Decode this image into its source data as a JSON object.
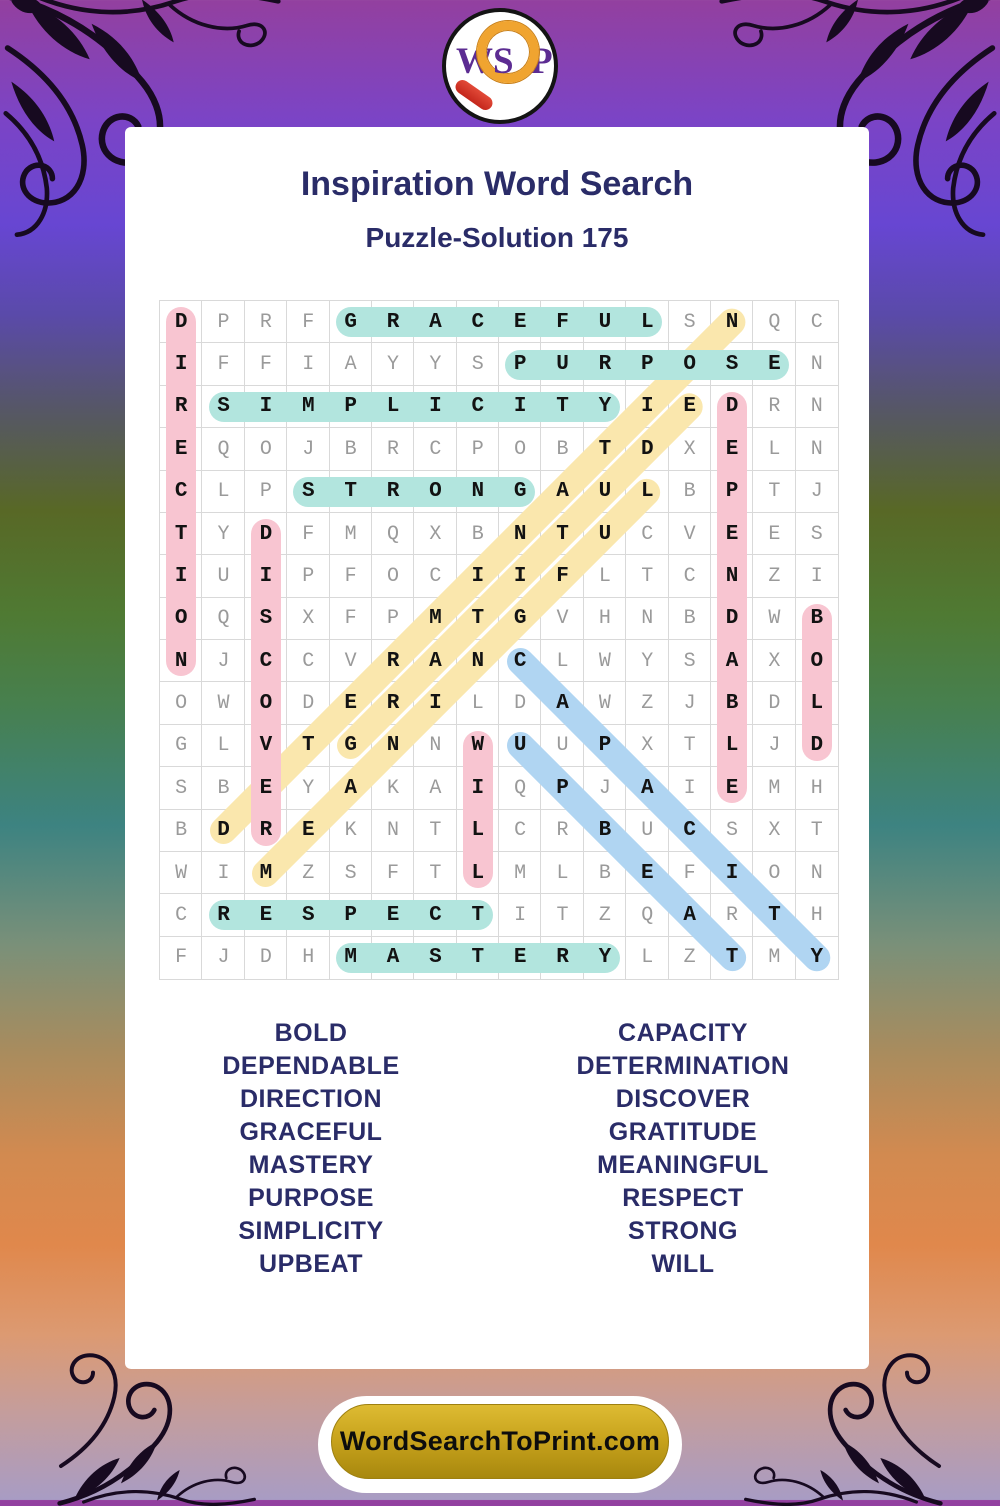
{
  "logo": {
    "letters": [
      "W",
      "S",
      "P"
    ]
  },
  "header": {
    "title": "Inspiration Word Search",
    "subtitle": "Puzzle-Solution 175"
  },
  "grid": {
    "size": 16,
    "rows": [
      "DPRFGRACEFULSNQC",
      "IFFIAYYSPURPOSEN",
      "RSIMPLICITYIEDRN",
      "EQOJBRCPOBTDXELN",
      "CLPSTRONGAULBPTJ",
      "TYDFMQXBNTUCVEES",
      "IUIPFOCIIFLTCNZI",
      "OQSXFPMTGVHNBDWB",
      "NJCCVRANCLWYSAXO",
      "OWODERILDAWZJBDL",
      "GLVTGNNWUUPXTLJD",
      "SBEYAKAIQPJAIEMH",
      "BDREKNTLCRBUCSXT",
      "WIMZSFTLMLBEFION",
      "CRESPECTITZQARTH",
      "FJDHMASTERYLZTMY"
    ]
  },
  "solutions": [
    {
      "word": "GRACEFUL",
      "row": 1,
      "col": 5,
      "dir": "h",
      "color": "teal"
    },
    {
      "word": "PURPOSE",
      "row": 2,
      "col": 9,
      "dir": "h",
      "color": "teal"
    },
    {
      "word": "SIMPLICITY",
      "row": 3,
      "col": 2,
      "dir": "h",
      "color": "teal"
    },
    {
      "word": "STRONG",
      "row": 5,
      "col": 4,
      "dir": "h",
      "color": "teal"
    },
    {
      "word": "RESPECT",
      "row": 15,
      "col": 2,
      "dir": "h",
      "color": "teal"
    },
    {
      "word": "MASTERY",
      "row": 16,
      "col": 5,
      "dir": "h",
      "color": "teal"
    },
    {
      "word": "DIRECTION",
      "row": 1,
      "col": 1,
      "dir": "v",
      "color": "pink"
    },
    {
      "word": "DISCOVER",
      "row": 6,
      "col": 3,
      "dir": "v",
      "color": "pink"
    },
    {
      "word": "DEPENDABLE",
      "row": 3,
      "col": 14,
      "dir": "v",
      "color": "pink"
    },
    {
      "word": "BOLD",
      "row": 8,
      "col": 16,
      "dir": "v",
      "color": "pink"
    },
    {
      "word": "WILL",
      "row": 11,
      "col": 8,
      "dir": "v",
      "color": "pink"
    },
    {
      "word": "DETERMINATION",
      "row": 13,
      "col": 2,
      "dir": "du",
      "color": "yellow"
    },
    {
      "word": "GRATITUDE",
      "row": 11,
      "col": 5,
      "dir": "du",
      "color": "yellow"
    },
    {
      "word": "MEANINGFUL",
      "row": 14,
      "col": 3,
      "dir": "du",
      "color": "yellow"
    },
    {
      "word": "CAPACITY",
      "row": 9,
      "col": 9,
      "dir": "dd",
      "color": "blue"
    },
    {
      "word": "UPBEAT",
      "row": 11,
      "col": 9,
      "dir": "dd",
      "color": "blue"
    }
  ],
  "word_list": {
    "left": [
      "BOLD",
      "DEPENDABLE",
      "DIRECTION",
      "GRACEFUL",
      "MASTERY",
      "PURPOSE",
      "SIMPLICITY",
      "UPBEAT"
    ],
    "right": [
      "CAPACITY",
      "DETERMINATION",
      "DISCOVER",
      "GRATITUDE",
      "MEANINGFUL",
      "RESPECT",
      "STRONG",
      "WILL"
    ]
  },
  "footer": {
    "button_label": "WordSearchToPrint.com"
  },
  "colors": {
    "highlight_teal": "#b2e5de",
    "highlight_pink": "#f8c5d1",
    "highlight_yellow": "#fae7ad",
    "highlight_blue": "#b0d5f2",
    "navy": "#2a2c68",
    "letter_gray": "#9a9a9a",
    "letter_dark": "#121212",
    "grid_line": "#d9d9d9",
    "logo_purple": "#5c2c92",
    "lens_orange": "#f0a430",
    "handle_red": "#c4271c"
  }
}
